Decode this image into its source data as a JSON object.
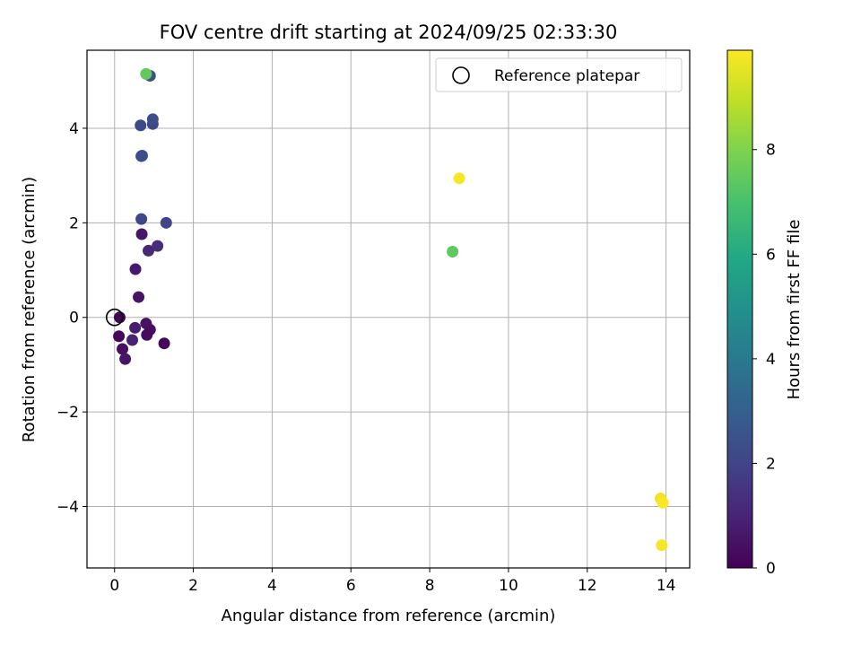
{
  "chart_data": {
    "type": "scatter",
    "title": "FOV centre drift starting at 2024/09/25 02:33:30",
    "xlabel": "Angular distance from reference (arcmin)",
    "ylabel": "Rotation from reference (arcmin)",
    "xlim": [
      -0.7,
      14.6
    ],
    "ylim": [
      -5.3,
      5.65
    ],
    "xticks": [
      0,
      2,
      4,
      6,
      8,
      10,
      12,
      14
    ],
    "yticks": [
      -4,
      -2,
      0,
      2,
      4
    ],
    "xticklabels": [
      "0",
      "2",
      "4",
      "6",
      "8",
      "10",
      "12",
      "14"
    ],
    "yticklabels": [
      "−4",
      "−2",
      "0",
      "2",
      "4"
    ],
    "grid": true,
    "legend": {
      "placement": "top-right",
      "entries": [
        "Reference platepar"
      ]
    },
    "reference_point": {
      "x": 0,
      "y": 0,
      "label": "Reference platepar"
    },
    "colorbar": {
      "label": "Hours from first FF file",
      "range": [
        0,
        9.9
      ],
      "ticks": [
        0,
        2,
        4,
        6,
        8
      ],
      "ticklabels": [
        "0",
        "2",
        "4",
        "6",
        "8"
      ],
      "colormap": "viridis"
    },
    "points": [
      {
        "x": 0.13,
        "y": 0.0,
        "c": 0.1
      },
      {
        "x": 0.11,
        "y": -0.4,
        "c": 0.2
      },
      {
        "x": 0.2,
        "y": -0.67,
        "c": 0.4
      },
      {
        "x": 0.27,
        "y": -0.88,
        "c": 0.6
      },
      {
        "x": 0.45,
        "y": -0.48,
        "c": 0.9
      },
      {
        "x": 0.52,
        "y": -0.22,
        "c": 0.8
      },
      {
        "x": 0.8,
        "y": -0.13,
        "c": 0.5
      },
      {
        "x": 0.9,
        "y": -0.26,
        "c": 0.4
      },
      {
        "x": 0.82,
        "y": -0.37,
        "c": 0.3
      },
      {
        "x": 1.26,
        "y": -0.55,
        "c": 0.2
      },
      {
        "x": 0.61,
        "y": 0.43,
        "c": 0.5
      },
      {
        "x": 0.53,
        "y": 1.02,
        "c": 0.7
      },
      {
        "x": 0.69,
        "y": 1.76,
        "c": 0.6
      },
      {
        "x": 0.86,
        "y": 1.41,
        "c": 1.1
      },
      {
        "x": 1.09,
        "y": 1.51,
        "c": 1.3
      },
      {
        "x": 0.68,
        "y": 2.08,
        "c": 2.1
      },
      {
        "x": 1.31,
        "y": 2.0,
        "c": 2.0
      },
      {
        "x": 0.68,
        "y": 3.41,
        "c": 2.2
      },
      {
        "x": 0.7,
        "y": 3.42,
        "c": 2.3
      },
      {
        "x": 0.66,
        "y": 4.06,
        "c": 2.2
      },
      {
        "x": 0.97,
        "y": 4.09,
        "c": 2.1
      },
      {
        "x": 0.97,
        "y": 4.19,
        "c": 2.3
      },
      {
        "x": 0.9,
        "y": 5.11,
        "c": 2.4
      },
      {
        "x": 0.8,
        "y": 5.15,
        "c": 7.5
      },
      {
        "x": 8.58,
        "y": 1.39,
        "c": 7.4
      },
      {
        "x": 8.75,
        "y": 2.94,
        "c": 9.8
      },
      {
        "x": 13.86,
        "y": -3.83,
        "c": 9.7
      },
      {
        "x": 13.92,
        "y": -3.92,
        "c": 9.9
      },
      {
        "x": 13.89,
        "y": -4.82,
        "c": 9.8
      }
    ]
  }
}
